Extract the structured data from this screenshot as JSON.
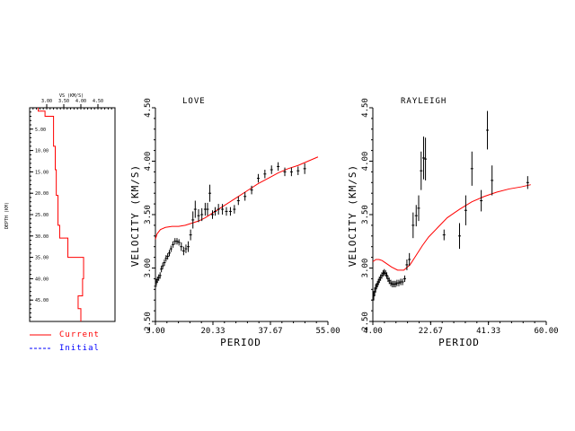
{
  "chart_data": [
    {
      "type": "line",
      "title": "",
      "xlabel": "VS (KM/S)",
      "ylabel": "DEPTH (KM)",
      "xlim": [
        2.5,
        5.0
      ],
      "ylim": [
        50,
        0
      ],
      "x_ticks": [
        "3.00",
        "3.50",
        "4.00",
        "4.50"
      ],
      "y_ticks": [
        "5.00",
        "10.00",
        "15.00",
        "20.00",
        "25.00",
        "30.00",
        "35.00",
        "40.00",
        "45.00"
      ],
      "series": [
        {
          "name": "Current",
          "color": "#ff0000",
          "style": "solid",
          "vs": [
            2.75,
            2.75,
            2.95,
            2.95,
            3.2,
            3.2,
            3.25,
            3.25,
            3.28,
            3.28,
            3.33,
            3.33,
            3.38,
            3.38,
            3.62,
            3.62,
            4.08,
            4.08,
            4.05,
            4.05,
            3.92,
            3.92,
            4.0,
            4.0
          ],
          "depth": [
            0,
            0.8,
            0.8,
            2,
            2,
            9,
            9,
            14.5,
            14.5,
            20.5,
            20.5,
            27.5,
            27.5,
            30.5,
            30.5,
            35,
            35,
            40,
            40,
            44,
            44,
            47,
            47,
            50
          ]
        },
        {
          "name": "Initial",
          "color": "#0000ff",
          "style": "dashed",
          "vs": [],
          "depth": []
        }
      ]
    },
    {
      "type": "scatter",
      "title": "LOVE",
      "xlabel": "PERIOD",
      "ylabel": "VELOCITY (KM/S)",
      "xlim": [
        3.0,
        55.0
      ],
      "ylim": [
        2.5,
        4.5
      ],
      "x_ticks": [
        "3.00",
        "20.33",
        "37.67",
        "55.00"
      ],
      "y_ticks": [
        "2.50",
        "3.00",
        "3.50",
        "4.00",
        "4.50"
      ],
      "model_curve": {
        "color": "#ff0000",
        "x": [
          3.0,
          3.5,
          4.5,
          6,
          8,
          10,
          12,
          14,
          16,
          18,
          20,
          22,
          25,
          28,
          31,
          34,
          37,
          40,
          43,
          46,
          49,
          52
        ],
        "y": [
          3.27,
          3.32,
          3.36,
          3.38,
          3.39,
          3.39,
          3.4,
          3.42,
          3.44,
          3.47,
          3.51,
          3.55,
          3.61,
          3.67,
          3.73,
          3.79,
          3.84,
          3.89,
          3.93,
          3.96,
          4.0,
          4.04
        ]
      },
      "observed": {
        "x": [
          3.0,
          3.3,
          3.6,
          4.0,
          4.4,
          4.8,
          5.2,
          5.7,
          6.2,
          6.7,
          7.2,
          7.7,
          8.3,
          8.9,
          9.5,
          10.1,
          10.8,
          11.5,
          12.2,
          12.9,
          13.6,
          14.3,
          15.0,
          16.0,
          17.0,
          18.0,
          18.7,
          19.4,
          20.2,
          21.0,
          22.0,
          23.2,
          24.4,
          25.6,
          26.8,
          28.0,
          30.0,
          32.0,
          34.0,
          36.0,
          38.0,
          40.0,
          42.0,
          44.0,
          46.0,
          48.0
        ],
        "y": [
          2.83,
          2.87,
          2.89,
          2.91,
          2.93,
          2.99,
          3.02,
          3.05,
          3.09,
          3.11,
          3.14,
          3.18,
          3.22,
          3.25,
          3.25,
          3.24,
          3.2,
          3.16,
          3.18,
          3.2,
          3.31,
          3.45,
          3.55,
          3.49,
          3.5,
          3.55,
          3.55,
          3.7,
          3.5,
          3.53,
          3.55,
          3.55,
          3.53,
          3.53,
          3.55,
          3.63,
          3.67,
          3.73,
          3.84,
          3.88,
          3.92,
          3.95,
          3.9,
          3.9,
          3.91,
          3.93
        ],
        "err": [
          0.03,
          0.03,
          0.03,
          0.03,
          0.03,
          0.03,
          0.03,
          0.03,
          0.03,
          0.03,
          0.03,
          0.03,
          0.03,
          0.03,
          0.03,
          0.03,
          0.04,
          0.04,
          0.04,
          0.05,
          0.05,
          0.08,
          0.08,
          0.06,
          0.06,
          0.06,
          0.06,
          0.08,
          0.04,
          0.04,
          0.05,
          0.05,
          0.04,
          0.04,
          0.04,
          0.04,
          0.04,
          0.04,
          0.04,
          0.04,
          0.04,
          0.04,
          0.04,
          0.04,
          0.04,
          0.05
        ]
      }
    },
    {
      "type": "scatter",
      "title": "RAYLEIGH",
      "xlabel": "PERIOD",
      "ylabel": "VELOCITY (KM/S)",
      "xlim": [
        4.0,
        60.0
      ],
      "ylim": [
        2.5,
        4.5
      ],
      "x_ticks": [
        "4.00",
        "22.67",
        "41.33",
        "60.00"
      ],
      "y_ticks": [
        "2.50",
        "3.00",
        "3.50",
        "4.00",
        "4.50"
      ],
      "model_curve": {
        "color": "#ff0000",
        "x": [
          4.0,
          5.0,
          6.0,
          7.0,
          8.0,
          9.0,
          10.0,
          12.0,
          14.0,
          16.0,
          18.0,
          20.0,
          22.0,
          25.0,
          28.0,
          32.0,
          36.0,
          40.0,
          44.0,
          48.0,
          52.0,
          55.0
        ],
        "y": [
          3.06,
          3.08,
          3.08,
          3.07,
          3.05,
          3.03,
          3.01,
          2.98,
          2.98,
          3.03,
          3.12,
          3.21,
          3.29,
          3.38,
          3.47,
          3.55,
          3.62,
          3.67,
          3.71,
          3.74,
          3.76,
          3.78
        ]
      },
      "observed": {
        "x": [
          4.0,
          4.3,
          4.6,
          4.9,
          5.2,
          5.5,
          5.8,
          6.1,
          6.5,
          6.9,
          7.3,
          7.7,
          8.1,
          8.5,
          8.9,
          9.3,
          9.8,
          10.3,
          10.8,
          11.3,
          11.8,
          12.4,
          13.0,
          13.6,
          14.3,
          15.0,
          15.8,
          17.0,
          18.0,
          18.8,
          19.6,
          20.4,
          21.0,
          27.0,
          32.0,
          34.0,
          36.0,
          39.0,
          41.0,
          42.5,
          54.0
        ],
        "y": [
          2.7,
          2.74,
          2.78,
          2.81,
          2.83,
          2.85,
          2.87,
          2.89,
          2.91,
          2.93,
          2.95,
          2.96,
          2.95,
          2.93,
          2.9,
          2.88,
          2.86,
          2.85,
          2.85,
          2.85,
          2.86,
          2.86,
          2.87,
          2.87,
          2.9,
          3.03,
          3.08,
          3.4,
          3.49,
          3.56,
          3.91,
          4.03,
          4.02,
          3.31,
          3.3,
          3.54,
          3.93,
          3.63,
          4.29,
          3.82,
          3.8
        ],
        "err": [
          0.04,
          0.04,
          0.04,
          0.04,
          0.03,
          0.03,
          0.03,
          0.03,
          0.03,
          0.03,
          0.03,
          0.03,
          0.03,
          0.03,
          0.03,
          0.03,
          0.03,
          0.03,
          0.03,
          0.03,
          0.03,
          0.03,
          0.03,
          0.03,
          0.03,
          0.05,
          0.06,
          0.12,
          0.1,
          0.12,
          0.18,
          0.2,
          0.2,
          0.05,
          0.12,
          0.14,
          0.16,
          0.1,
          0.18,
          0.14,
          0.06
        ]
      }
    }
  ],
  "legend": {
    "items": [
      {
        "label": "Current",
        "color": "#ff0000",
        "style": "solid"
      },
      {
        "label": "Initial",
        "color": "#0000ff",
        "style": "dashed"
      }
    ]
  }
}
